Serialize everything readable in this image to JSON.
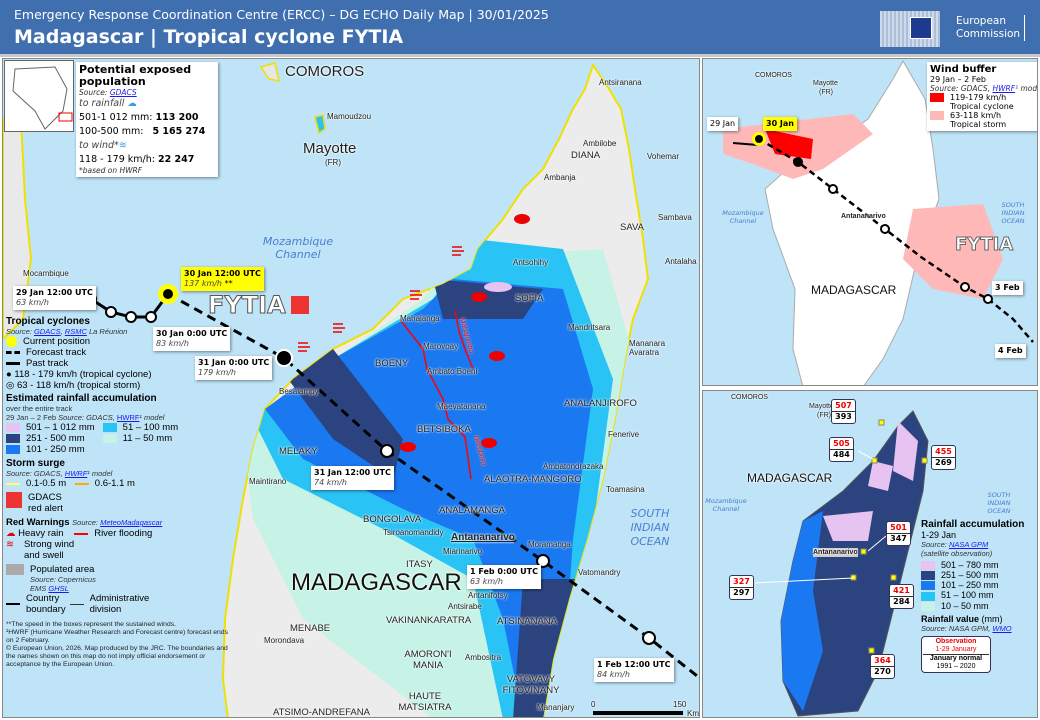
{
  "header": {
    "subtitle": "Emergency Response Coordination Centre (ERCC) – DG ECHO Daily Map | 30/01/2025",
    "title": "Madagascar | Tropical cyclone FYTIA",
    "logo_text_1": "European",
    "logo_text_2": "Commission"
  },
  "colors": {
    "header": "#3f6fae",
    "sea": "#bfe4f8",
    "rain_501_1012": "#e6c3f0",
    "rain_251_500": "#2b4480",
    "rain_101_250": "#1a78f0",
    "rain_51_100": "#2ac3f5",
    "rain_11_50": "#c6f3e6",
    "wind_tc": "#ff0000",
    "wind_ts": "#ffb8b8",
    "surge_low": "#ffff66",
    "surge_high": "#ffaa00",
    "river_flood": "#ff0000",
    "current_position": "#ffff00"
  },
  "exposed": {
    "title": "Potential exposed population",
    "source_label": "Source:",
    "source_link": "GDACS",
    "rain_label": "to rainfall",
    "rain_rows": [
      {
        "range": "501-1 012 mm:",
        "value": "113 200"
      },
      {
        "range": "100-500 mm:",
        "value": "5 165 274"
      }
    ],
    "wind_label": "to wind*",
    "wind_rows": [
      {
        "range": "118 - 179 km/h:",
        "value": "22 247"
      }
    ],
    "note": "*based on HWRF"
  },
  "main_map": {
    "cyclone_name": "FYTIA",
    "countries": [
      "COMOROS",
      "Mayotte",
      "(FR)",
      "MADAGASCAR"
    ],
    "seas": [
      "Mozambique Channel",
      "SOUTH INDIAN OCEAN"
    ],
    "regions": [
      "DIANA",
      "SAVA",
      "SOFIA",
      "BOENY",
      "MELAKY",
      "BETSIBOKA",
      "ANALANJIROFO",
      "ALAOTRA-MANGORO",
      "ANALAMANGA",
      "BONGOLAVA",
      "ITASY",
      "VAKINANKARATRA",
      "ATSINANANA",
      "MENABE",
      "AMORON'I MANIA",
      "VATOVAVY FITOVINANY",
      "HAUTE MATSIATRA",
      "ATSIMO-ANDREFANA"
    ],
    "cities": [
      "Antsiranana",
      "Ambilobe",
      "Vohemar",
      "Ambanja",
      "Sambava",
      "Antsohihy",
      "Antalaha",
      "Mahajanga",
      "Mandritsara",
      "Marovoay",
      "Mananara Avaratra",
      "Ambato Boeni",
      "Besalampy",
      "Maevatanana",
      "Fenerive",
      "Ambatondrazaka",
      "Maintirano",
      "Toamasina",
      "Tsiroanomandidy",
      "Moramanga",
      "Miarinarivo",
      "Vatomandry",
      "Antanifotsy",
      "Antsirabe",
      "Morondava",
      "Ambositra",
      "Mananjary",
      "Mamoudzou",
      "Mocambique"
    ],
    "capital": "Antananarivo",
    "rivers": [
      "Mahajamba",
      "Betsiboka"
    ],
    "track_labels": [
      {
        "time": "29 Jan 12:00 UTC",
        "speed": "63 km/h"
      },
      {
        "time": "30 Jan 12:00 UTC",
        "speed": "137 km/h",
        "note": "**"
      },
      {
        "time": "30 Jan 0:00 UTC",
        "speed": "83 km/h"
      },
      {
        "time": "31 Jan 0:00 UTC",
        "speed": "179 km/h"
      },
      {
        "time": "31 Jan 12:00 UTC",
        "speed": "74 km/h"
      },
      {
        "time": "1 Feb 0:00 UTC",
        "speed": "63 km/h"
      },
      {
        "time": "1 Feb 12:00 UTC",
        "speed": "84 km/h"
      }
    ],
    "scale": {
      "start": "0",
      "end": "150",
      "unit": "Km"
    }
  },
  "legend": {
    "tc_title": "Tropical cyclones",
    "tc_source": "Source:",
    "tc_src_links": [
      "GDACS",
      "RSMC"
    ],
    "tc_src_tail": "La Réunion",
    "tc_items": [
      "Current position",
      "Forecast track",
      "Past track",
      "118 - 179 km/h (tropical cyclone)",
      "63 - 118 km/h (tropical storm)"
    ],
    "rain_title": "Estimated rainfall accumulation",
    "rain_sub": "over the entire track",
    "rain_period": "29 Jan – 2 Feb",
    "rain_src": "Source: GDACS,",
    "rain_src_link": "HWRF",
    "rain_src_tail": "¹ model",
    "rain_items": [
      "501 – 1 012 mm",
      "251 - 500 mm",
      "101 - 250 mm",
      "51 – 100 mm",
      "11 – 50 mm"
    ],
    "surge_title": "Storm surge",
    "surge_src": "Source: GDACS,",
    "surge_src_link": "HWRF",
    "surge_src_tail": "¹ model",
    "surge_items": [
      "0.1-0.5 m",
      "0.6-1.1 m"
    ],
    "gdacs_alert": [
      "GDACS",
      "red alert"
    ],
    "warn_title": "Red Warnings",
    "warn_src": "Source:",
    "warn_src_link": "MeteoMadagascar",
    "warn_items": [
      "Heavy rain",
      "River flooding",
      "Strong wind",
      "and swell"
    ],
    "pop_label": "Populated area",
    "pop_src": "Source: Copernicus",
    "pop_src2": "EMS",
    "pop_src_link": "GHSL",
    "boundary": [
      "Country",
      "boundary"
    ],
    "admin": [
      "Administrative",
      "division"
    ],
    "notes": [
      "**The speed in the boxes represent the sustained winds.",
      "¹HWRF (Hurricane Weather Research and Forecast centre) forecast ends on 2 February.",
      "© European Union, 2026. Map produced by the JRC. The boundaries and the names shown on this map do not imply official endorsement or acceptance by the European Union."
    ]
  },
  "wind_inset": {
    "title": "Wind buffer",
    "period": "29 Jan – 2 Feb",
    "src": "Source: GDACS,",
    "src_link": "HWRF",
    "src_tail": "¹ model",
    "items": [
      [
        "119-179 km/h",
        "Tropical cyclone"
      ],
      [
        "63-118 km/h",
        "Tropical storm"
      ]
    ],
    "labels": [
      "COMOROS",
      "Mayotte",
      "(FR)",
      "Mozambique Channel",
      "Antananarivo",
      "SOUTH INDIAN OCEAN",
      "FYTIA",
      "MADAGASCAR"
    ],
    "dates": [
      "29 Jan",
      "30 Jan",
      "3 Feb",
      "4 Feb"
    ]
  },
  "rain_inset": {
    "labels": [
      "COMOROS",
      "Mayotte",
      "(FR)",
      "MADAGASCAR",
      "Mozambique Channel",
      "SOUTH INDIAN OCEAN",
      "Antananarivo"
    ],
    "stations": [
      {
        "obs": "507",
        "normal": "393"
      },
      {
        "obs": "505",
        "normal": "484"
      },
      {
        "obs": "455",
        "normal": "269"
      },
      {
        "obs": "501",
        "normal": "347"
      },
      {
        "obs": "327",
        "normal": "297"
      },
      {
        "obs": "421",
        "normal": "284"
      },
      {
        "obs": "364",
        "normal": "270"
      }
    ],
    "title": "Rainfall accumulation",
    "period": "1-29 Jan",
    "src": "Source:",
    "src_link": "NASA GPM",
    "src_note": "(satellite observation)",
    "items": [
      "501 – 780 mm",
      "251 – 500 mm",
      "101 – 250 mm",
      "51 – 100 mm",
      "10 – 50 mm"
    ],
    "value_title": "Rainfall value",
    "value_unit": "(mm)",
    "value_src": "Source: NASA GPM,",
    "value_src_link": "WMO",
    "key": {
      "obs": "Observation",
      "obs_period": "1-29 January",
      "normal": "January normal",
      "normal_period": "1991 – 2020"
    }
  }
}
